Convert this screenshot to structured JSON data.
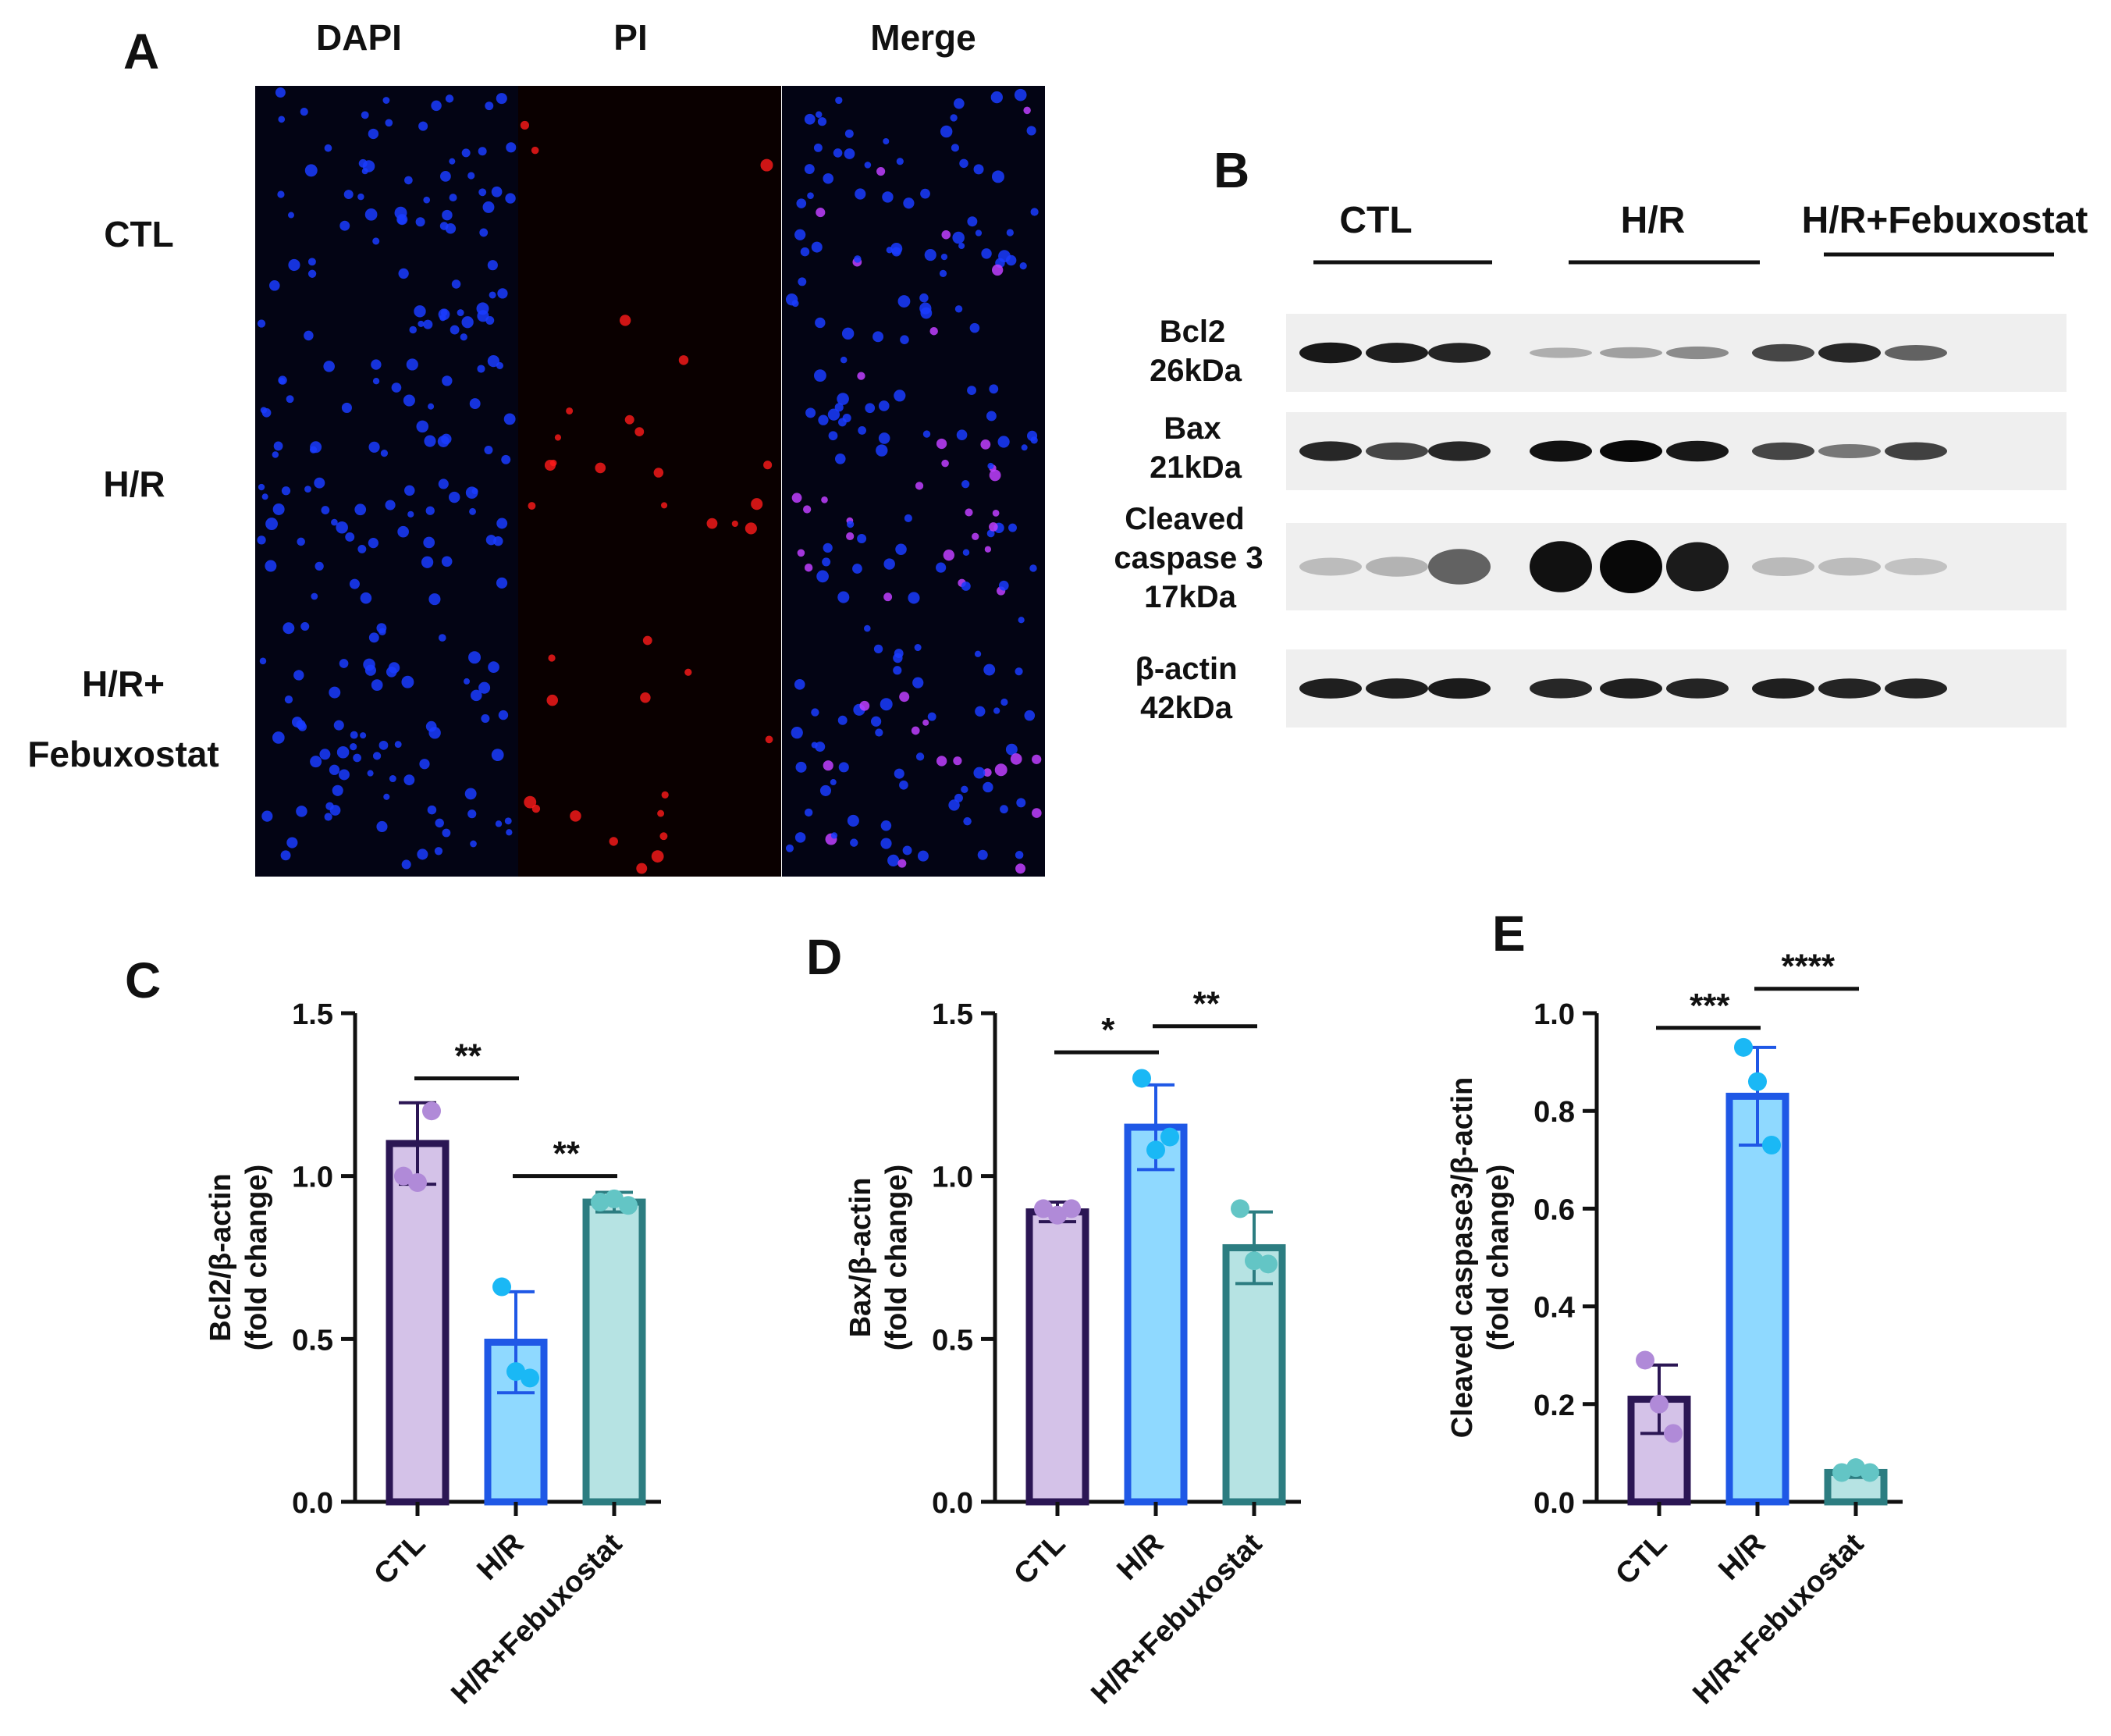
{
  "panel_letters": {
    "a": "A",
    "b": "B",
    "c": "C",
    "d": "D",
    "e": "E"
  },
  "panel_a": {
    "columns": [
      "DAPI",
      "PI",
      "Merge"
    ],
    "rows": [
      "CTL",
      "H/R",
      "H/R+",
      "Febuxostat"
    ],
    "channel_colors": {
      "dapi": "#1a3cff",
      "pi": "#ff1a1a",
      "merge": "#c040ff"
    }
  },
  "panel_b": {
    "groups": [
      "CTL",
      "H/R",
      "H/R+Febuxostat"
    ],
    "blots": [
      {
        "name": "Bcl2",
        "size": "26kDa",
        "lane_intensity": [
          0.92,
          0.88,
          0.86,
          0.18,
          0.25,
          0.35,
          0.7,
          0.85,
          0.55
        ]
      },
      {
        "name": "Bax",
        "size": "21kDa",
        "lane_intensity": [
          0.85,
          0.7,
          0.85,
          0.95,
          1.0,
          0.92,
          0.7,
          0.45,
          0.72
        ]
      },
      {
        "name": "Cleaved",
        "name2": "caspase 3",
        "size": "17kDa",
        "lane_intensity": [
          0.1,
          0.15,
          0.55,
          0.95,
          1.0,
          0.9,
          0.12,
          0.1,
          0.08
        ]
      },
      {
        "name": "β-actin",
        "size": "42kDa",
        "lane_intensity": [
          0.88,
          0.88,
          0.9,
          0.85,
          0.88,
          0.86,
          0.88,
          0.86,
          0.86
        ]
      }
    ]
  },
  "chart_data": [
    {
      "type": "bar",
      "panel": "C",
      "categories": [
        "CTL",
        "H/R",
        "H/R+Febuxostat"
      ],
      "ylabel": "Bcl2/β-actin",
      "ylabel2": "(fold change)",
      "ylim": [
        0,
        1.5
      ],
      "yticks": [
        "0.0",
        "0.5",
        "1.0",
        "1.5"
      ],
      "ytick_values": [
        0,
        0.5,
        1.0,
        1.5
      ],
      "values": [
        1.1,
        0.49,
        0.92
      ],
      "errors": [
        0.125,
        0.155,
        0.03
      ],
      "points": [
        [
          1.0,
          0.98,
          1.2
        ],
        [
          0.66,
          0.4,
          0.38
        ],
        [
          0.92,
          0.93,
          0.91
        ]
      ],
      "significance": [
        {
          "from": 0,
          "to": 1,
          "label": "**",
          "y": 1.3
        },
        {
          "from": 1,
          "to": 2,
          "label": "**",
          "y": 1.0
        }
      ]
    },
    {
      "type": "bar",
      "panel": "D",
      "categories": [
        "CTL",
        "H/R",
        "H/R+Febuxostat"
      ],
      "ylabel": "Bax/β-actin",
      "ylabel2": "(fold change)",
      "ylim": [
        0,
        1.5
      ],
      "yticks": [
        "0.0",
        "0.5",
        "1.0",
        "1.5"
      ],
      "ytick_values": [
        0,
        0.5,
        1.0,
        1.5
      ],
      "values": [
        0.89,
        1.15,
        0.78
      ],
      "errors": [
        0.03,
        0.13,
        0.11
      ],
      "points": [
        [
          0.9,
          0.88,
          0.9
        ],
        [
          1.3,
          1.08,
          1.12
        ],
        [
          0.9,
          0.74,
          0.73
        ]
      ],
      "significance": [
        {
          "from": 0,
          "to": 1,
          "label": "*",
          "y": 1.38
        },
        {
          "from": 1,
          "to": 2,
          "label": "**",
          "y": 1.46
        }
      ]
    },
    {
      "type": "bar",
      "panel": "E",
      "categories": [
        "CTL",
        "H/R",
        "H/R+Febuxostat"
      ],
      "ylabel": "Cleaved caspase3/β-actin",
      "ylabel2": "(fold change)",
      "ylim": [
        0,
        1.0
      ],
      "yticks": [
        "0.0",
        "0.2",
        "0.4",
        "0.6",
        "0.8",
        "1.0"
      ],
      "ytick_values": [
        0,
        0.2,
        0.4,
        0.6,
        0.8,
        1.0
      ],
      "values": [
        0.21,
        0.83,
        0.06
      ],
      "errors": [
        0.07,
        0.1,
        0.01
      ],
      "points": [
        [
          0.29,
          0.2,
          0.14
        ],
        [
          0.93,
          0.86,
          0.73
        ],
        [
          0.06,
          0.07,
          0.06
        ]
      ],
      "significance": [
        {
          "from": 0,
          "to": 1,
          "label": "***",
          "y": 0.97
        },
        {
          "from": 1,
          "to": 2,
          "label": "****",
          "y": 1.05
        }
      ]
    }
  ],
  "bar_colors": {
    "fills": [
      "#d4c2e8",
      "#8fd9ff",
      "#b6e3e3"
    ],
    "edges": [
      "#2b1654",
      "#1f58e6",
      "#2c7d81"
    ],
    "points": [
      "#b08ad8",
      "#1ab8f5",
      "#63c5c5"
    ]
  }
}
